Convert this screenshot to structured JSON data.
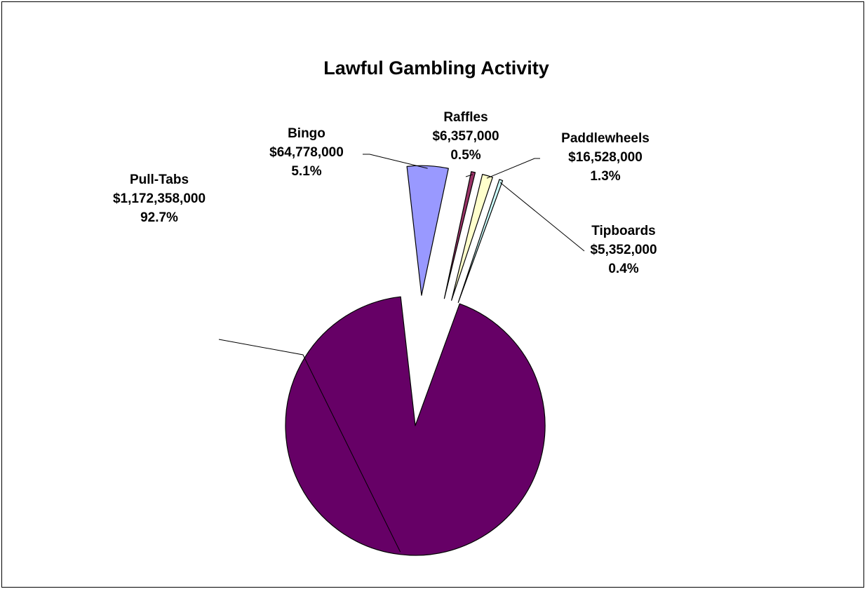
{
  "chart_data": {
    "type": "pie",
    "title": "Lawful Gambling Activity",
    "slices": [
      {
        "name": "Pull-Tabs",
        "value": 1172358000,
        "value_label": "$1,172,358,000",
        "percent_label": "92.7%",
        "color": "#660066",
        "exploded": false
      },
      {
        "name": "Bingo",
        "value": 64778000,
        "value_label": "$64,778,000",
        "percent_label": "5.1%",
        "color": "#9999FF",
        "exploded": true
      },
      {
        "name": "Raffles",
        "value": 6357000,
        "value_label": "$6,357,000",
        "percent_label": "0.5%",
        "color": "#993366",
        "exploded": true
      },
      {
        "name": "Paddlewheels",
        "value": 16528000,
        "value_label": "$16,528,000",
        "percent_label": "1.3%",
        "color": "#FFFFCC",
        "exploded": true
      },
      {
        "name": "Tipboards",
        "value": 5352000,
        "value_label": "$5,352,000",
        "percent_label": "0.4%",
        "color": "#CCFFFF",
        "exploded": true
      }
    ],
    "legend": "none",
    "data_labels": "outside-with-leader-lines"
  }
}
